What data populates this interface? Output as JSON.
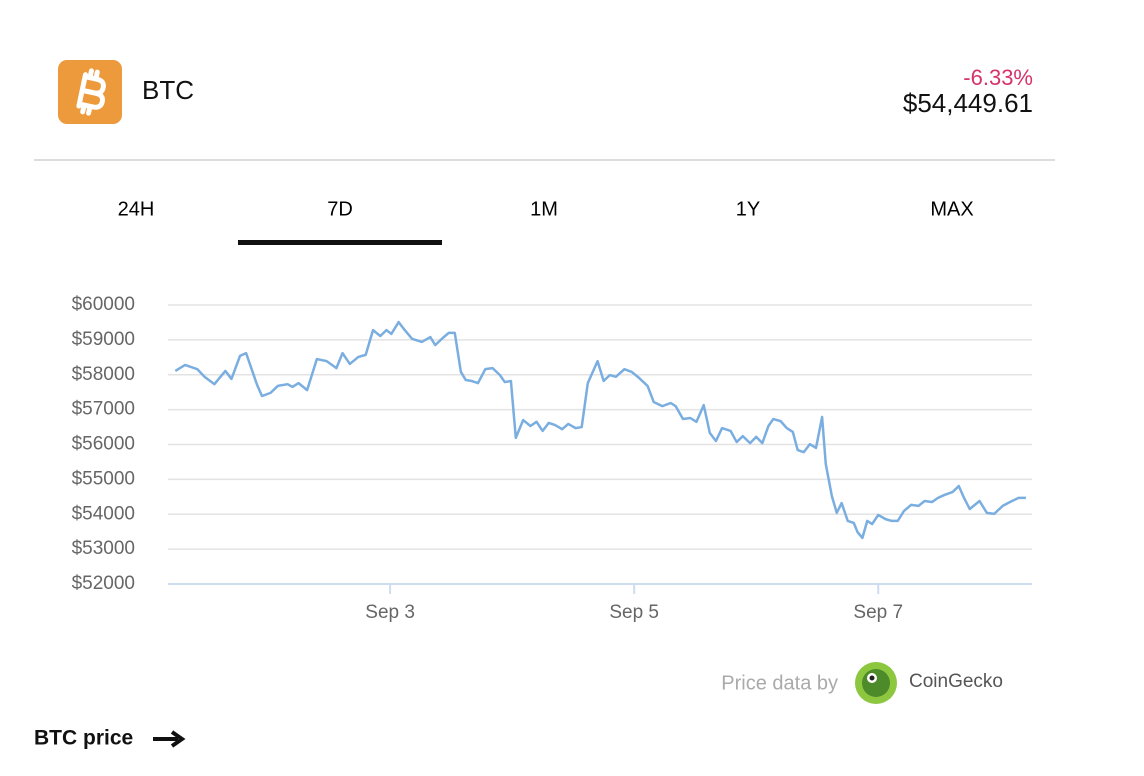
{
  "header": {
    "symbol": "BTC",
    "change": "-6.33%",
    "price": "$54,449.61"
  },
  "tabs": [
    "24H",
    "7D",
    "1M",
    "1Y",
    "MAX"
  ],
  "chart_data": {
    "type": "line",
    "color": "#7aaee0",
    "grid": true,
    "x": [
      1.24,
      1.32,
      1.42,
      1.48,
      1.56,
      1.65,
      1.7,
      1.77,
      1.82,
      1.91,
      1.95,
      2.02,
      2.08,
      2.16,
      2.2,
      2.25,
      2.32,
      2.4,
      2.48,
      2.56,
      2.61,
      2.67,
      2.74,
      2.8,
      2.86,
      2.92,
      2.97,
      3.01,
      3.07,
      3.12,
      3.18,
      3.26,
      3.33,
      3.37,
      3.43,
      3.48,
      3.53,
      3.58,
      3.62,
      3.67,
      3.72,
      3.78,
      3.84,
      3.9,
      3.94,
      3.99,
      4.03,
      4.09,
      4.15,
      4.2,
      4.25,
      4.3,
      4.35,
      4.41,
      4.46,
      4.52,
      4.57,
      4.62,
      4.7,
      4.75,
      4.8,
      4.85,
      4.92,
      4.98,
      5.03,
      5.11,
      5.16,
      5.23,
      5.3,
      5.34,
      5.4,
      5.46,
      5.51,
      5.57,
      5.62,
      5.67,
      5.72,
      5.79,
      5.84,
      5.89,
      5.95,
      6.0,
      6.05,
      6.1,
      6.14,
      6.2,
      6.25,
      6.3,
      6.34,
      6.39,
      6.44,
      6.49,
      6.54,
      6.57,
      6.62,
      6.66,
      6.7,
      6.75,
      6.8,
      6.83,
      6.87,
      6.91,
      6.95,
      7.0,
      7.06,
      7.11,
      7.16,
      7.21,
      7.27,
      7.33,
      7.38,
      7.44,
      7.49,
      7.54,
      7.61,
      7.66,
      7.7,
      7.75,
      7.83,
      7.89,
      7.95,
      8.02,
      8.08,
      8.15,
      8.21
    ],
    "values": [
      58110,
      58280,
      58160,
      57940,
      57730,
      58110,
      57880,
      58540,
      58620,
      57710,
      57390,
      57480,
      57680,
      57730,
      57650,
      57760,
      57560,
      58450,
      58390,
      58190,
      58620,
      58310,
      58510,
      58570,
      59280,
      59110,
      59280,
      59170,
      59510,
      59280,
      59030,
      58940,
      59080,
      58850,
      59050,
      59200,
      59200,
      58080,
      57850,
      57820,
      57760,
      58160,
      58190,
      57990,
      57790,
      57820,
      56190,
      56700,
      56530,
      56650,
      56390,
      56620,
      56560,
      56440,
      56590,
      56470,
      56500,
      57760,
      58390,
      57820,
      57990,
      57940,
      58160,
      58080,
      57940,
      57680,
      57220,
      57100,
      57190,
      57100,
      56730,
      56760,
      56650,
      57130,
      56330,
      56100,
      56470,
      56390,
      56070,
      56240,
      56040,
      56220,
      56040,
      56530,
      56730,
      56670,
      56470,
      56360,
      55840,
      55780,
      56010,
      55900,
      56790,
      55440,
      54520,
      54040,
      54320,
      53810,
      53750,
      53490,
      53320,
      53810,
      53720,
      53980,
      53860,
      53810,
      53810,
      54090,
      54270,
      54240,
      54380,
      54350,
      54470,
      54550,
      54640,
      54810,
      54490,
      54150,
      54380,
      54040,
      54010,
      54240,
      54350,
      54470,
      54470
    ],
    "xlim": [
      1.18,
      8.26
    ],
    "ylim": [
      52000,
      60000
    ],
    "xticks": [
      {
        "value": 3,
        "label": "Sep 3"
      },
      {
        "value": 5,
        "label": "Sep 5"
      },
      {
        "value": 7,
        "label": "Sep 7"
      }
    ],
    "yticks": [
      {
        "value": 52000,
        "label": "$52000"
      },
      {
        "value": 53000,
        "label": "$53000"
      },
      {
        "value": 54000,
        "label": "$54000"
      },
      {
        "value": 55000,
        "label": "$55000"
      },
      {
        "value": 56000,
        "label": "$56000"
      },
      {
        "value": 57000,
        "label": "$57000"
      },
      {
        "value": 58000,
        "label": "$58000"
      },
      {
        "value": 59000,
        "label": "$59000"
      },
      {
        "value": 60000,
        "label": "$60000"
      }
    ]
  },
  "attribution": {
    "text": "Price data by",
    "source": "CoinGecko"
  },
  "caption": "BTC price"
}
